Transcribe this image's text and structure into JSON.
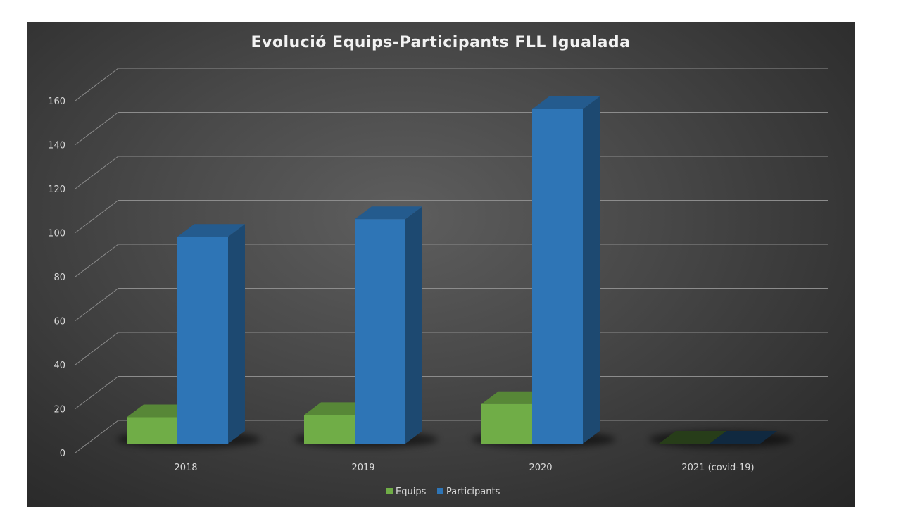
{
  "chart_data": {
    "type": "bar",
    "title": "Evolució Equips-Participants FLL Igualada",
    "categories": [
      "2018",
      "2019",
      "2020",
      "2021 (covid-19)"
    ],
    "series": [
      {
        "name": "Equips",
        "values": [
          12,
          13,
          18,
          0
        ],
        "color": "#70ad47"
      },
      {
        "name": "Participants",
        "values": [
          94,
          102,
          152,
          0
        ],
        "color": "#2e75b6"
      }
    ],
    "y_ticks": [
      "0",
      "20",
      "40",
      "60",
      "80",
      "100",
      "120",
      "140",
      "160"
    ],
    "ylim": [
      0,
      160
    ],
    "grid": true,
    "legend_position": "bottom",
    "style": "3d-clustered-column"
  }
}
